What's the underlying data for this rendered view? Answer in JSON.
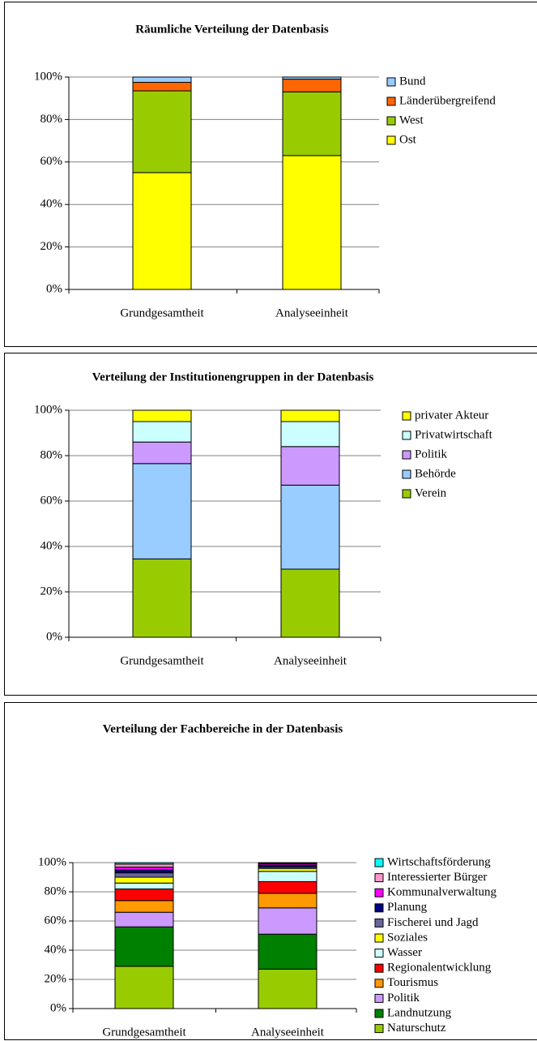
{
  "chart_data": [
    {
      "type": "bar",
      "stacked": true,
      "title": "Räumliche Verteilung der Datenbasis",
      "categories": [
        "Grundgesamtheit",
        "Analyseeinheit"
      ],
      "series": [
        {
          "name": "Ost",
          "color": "#ffff00",
          "values": [
            55,
            63
          ]
        },
        {
          "name": "West",
          "color": "#99cc00",
          "values": [
            38.5,
            30
          ]
        },
        {
          "name": "Länderübergreifend",
          "color": "#ff6600",
          "values": [
            4,
            6
          ]
        },
        {
          "name": "Bund",
          "color": "#99ccff",
          "values": [
            2.5,
            1
          ]
        }
      ],
      "ylim": [
        0,
        100
      ],
      "yticks": [
        {
          "value": 0,
          "label": "0%"
        },
        {
          "value": 20,
          "label": "20%"
        },
        {
          "value": 40,
          "label": "40%"
        },
        {
          "value": 60,
          "label": "60%"
        },
        {
          "value": 80,
          "label": "80%"
        },
        {
          "value": 100,
          "label": "100%"
        }
      ],
      "grid": true,
      "legend": "right"
    },
    {
      "type": "bar",
      "stacked": true,
      "title": "Verteilung der Institutionengruppen in der Datenbasis",
      "categories": [
        "Grundgesamtheit",
        "Analyseeinheit"
      ],
      "series": [
        {
          "name": "Verein",
          "color": "#99cc00",
          "values": [
            34.5,
            30
          ]
        },
        {
          "name": "Behörde",
          "color": "#99ccff",
          "values": [
            42,
            37
          ]
        },
        {
          "name": "Politik",
          "color": "#cc99ff",
          "values": [
            9.5,
            17
          ]
        },
        {
          "name": "Privatwirtschaft",
          "color": "#ccffff",
          "values": [
            9,
            11
          ]
        },
        {
          "name": "privater Akteur",
          "color": "#ffff00",
          "values": [
            5,
            5
          ]
        }
      ],
      "ylim": [
        0,
        100
      ],
      "yticks": [
        {
          "value": 0,
          "label": "0%"
        },
        {
          "value": 20,
          "label": "20%"
        },
        {
          "value": 40,
          "label": "40%"
        },
        {
          "value": 60,
          "label": "60%"
        },
        {
          "value": 80,
          "label": "80%"
        },
        {
          "value": 100,
          "label": "100%"
        }
      ],
      "grid": true,
      "legend": "right"
    },
    {
      "type": "bar",
      "stacked": true,
      "title": "Verteilung der Fachbereiche in der Datenbasis",
      "categories": [
        "Grundgesamtheit",
        "Analyseeinheit"
      ],
      "series": [
        {
          "name": "Naturschutz",
          "color": "#99cc00",
          "values": [
            29,
            27
          ]
        },
        {
          "name": "Landnutzung",
          "color": "#008000",
          "values": [
            27,
            24
          ]
        },
        {
          "name": "Politik",
          "color": "#cc99ff",
          "values": [
            10,
            18
          ]
        },
        {
          "name": "Tourismus",
          "color": "#ff9900",
          "values": [
            8,
            10
          ]
        },
        {
          "name": "Regionalentwicklung",
          "color": "#ff0000",
          "values": [
            8,
            8
          ]
        },
        {
          "name": "Wasser",
          "color": "#ccffff",
          "values": [
            4,
            7
          ]
        },
        {
          "name": "Soziales",
          "color": "#ffff00",
          "values": [
            4,
            2
          ]
        },
        {
          "name": "Fischerei und Jagd",
          "color": "#666699",
          "values": [
            3,
            1
          ]
        },
        {
          "name": "Planung",
          "color": "#000080",
          "values": [
            2,
            1
          ]
        },
        {
          "name": "Kommunalverwaltung",
          "color": "#ff00ff",
          "values": [
            2,
            1
          ]
        },
        {
          "name": "Interessierter Bürger",
          "color": "#ff99cc",
          "values": [
            2,
            0.5
          ]
        },
        {
          "name": "Wirtschaftsförderung",
          "color": "#00ffff",
          "values": [
            1,
            0.5
          ]
        }
      ],
      "ylim": [
        0,
        100
      ],
      "yticks": [
        {
          "value": 0,
          "label": "0%"
        },
        {
          "value": 20,
          "label": "20%"
        },
        {
          "value": 40,
          "label": "40%"
        },
        {
          "value": 60,
          "label": "60%"
        },
        {
          "value": 80,
          "label": "80%"
        },
        {
          "value": 100,
          "label": "100%"
        }
      ],
      "grid": true,
      "legend": "right"
    }
  ]
}
